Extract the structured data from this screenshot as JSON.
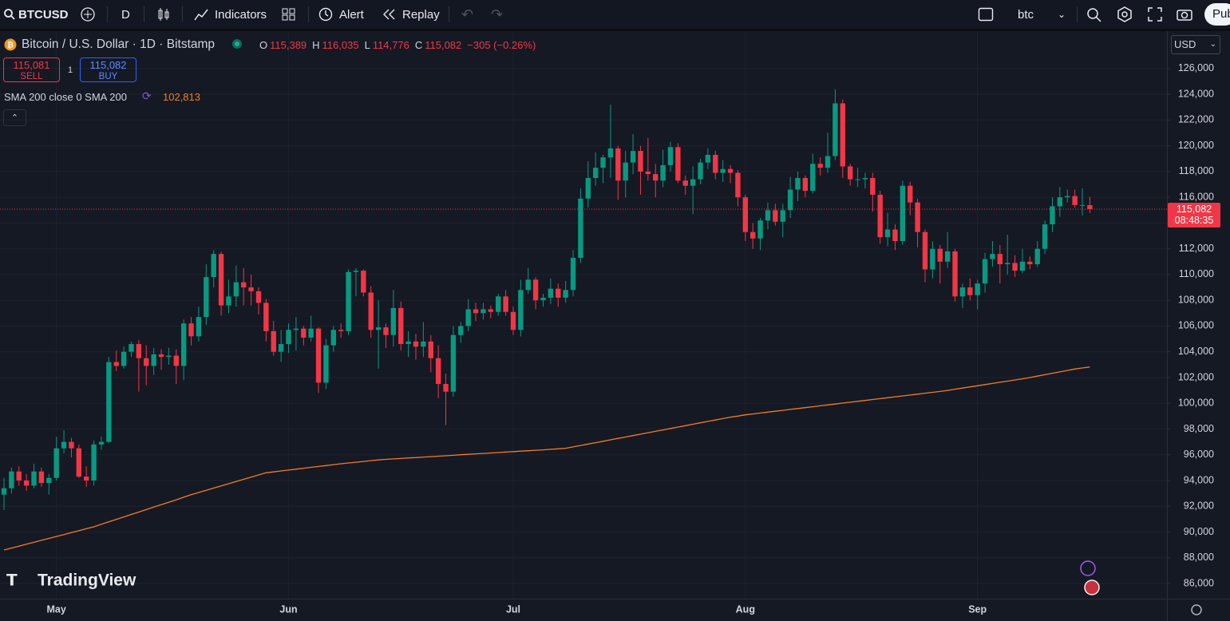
{
  "toolbar": {
    "symbol": "BTCUSD",
    "interval": "D",
    "indicators": "Indicators",
    "alert": "Alert",
    "replay": "Replay",
    "search": "btc",
    "publish": "Pub"
  },
  "legend": {
    "title": "Bitcoin / U.S. Dollar · 1D · Bitstamp",
    "o_label": "O",
    "open": "115,389",
    "h_label": "H",
    "high": "116,035",
    "l_label": "L",
    "low": "114,776",
    "c_label": "C",
    "close": "115,082",
    "change": "−305 (−0.26%)"
  },
  "trade": {
    "sell_price": "115,081",
    "sell": "SELL",
    "qty": "1",
    "buy_price": "115,082",
    "buy": "BUY"
  },
  "indicator": {
    "label": "SMA 200 close 0 SMA 200",
    "value": "102,813"
  },
  "price_axis": {
    "currency": "USD",
    "last_price": "115,082",
    "countdown": "08:48:35"
  },
  "brand": "TradingView",
  "chart_data": {
    "type": "candlestick",
    "up_color": "#089981",
    "down_color": "#f23645",
    "grid": true,
    "ylim": [
      84820,
      128910
    ],
    "yticks": [
      {
        "value": 86000,
        "label": "86,000"
      },
      {
        "value": 88000,
        "label": "88,000"
      },
      {
        "value": 90000,
        "label": "90,000"
      },
      {
        "value": 92000,
        "label": "92,000"
      },
      {
        "value": 94000,
        "label": "94,000"
      },
      {
        "value": 96000,
        "label": "96,000"
      },
      {
        "value": 98000,
        "label": "98,000"
      },
      {
        "value": 100000,
        "label": "100,000"
      },
      {
        "value": 102000,
        "label": "102,000"
      },
      {
        "value": 104000,
        "label": "104,000"
      },
      {
        "value": 106000,
        "label": "106,000"
      },
      {
        "value": 108000,
        "label": "108,000"
      },
      {
        "value": 110000,
        "label": "110,000"
      },
      {
        "value": 112000,
        "label": "112,000"
      },
      {
        "value": 114000,
        "label": "114,000"
      },
      {
        "value": 116000,
        "label": "116,000"
      },
      {
        "value": 118000,
        "label": "118,000"
      },
      {
        "value": 120000,
        "label": "120,000"
      },
      {
        "value": 122000,
        "label": "122,000"
      },
      {
        "value": 124000,
        "label": "124,000"
      },
      {
        "value": 126000,
        "label": "126,000"
      }
    ],
    "categories": [
      null,
      null,
      null,
      null,
      null,
      null,
      null,
      "May",
      null,
      null,
      null,
      null,
      null,
      null,
      null,
      null,
      null,
      null,
      null,
      null,
      null,
      null,
      null,
      null,
      null,
      null,
      null,
      null,
      null,
      null,
      null,
      null,
      null,
      null,
      null,
      null,
      null,
      null,
      "Jun",
      null,
      null,
      null,
      null,
      null,
      null,
      null,
      null,
      null,
      null,
      null,
      null,
      null,
      null,
      null,
      null,
      null,
      null,
      null,
      null,
      null,
      null,
      null,
      null,
      null,
      null,
      null,
      null,
      null,
      "Jul",
      null,
      null,
      null,
      null,
      null,
      null,
      null,
      null,
      null,
      null,
      null,
      null,
      null,
      null,
      null,
      null,
      null,
      null,
      null,
      null,
      null,
      null,
      null,
      null,
      null,
      null,
      null,
      null,
      null,
      null,
      "Aug",
      null,
      null,
      null,
      null,
      null,
      null,
      null,
      null,
      null,
      null,
      null,
      null,
      null,
      null,
      null,
      null,
      null,
      null,
      null,
      null,
      null,
      null,
      null,
      null,
      null,
      null,
      null,
      null,
      null,
      null,
      "Sep",
      null,
      null,
      null,
      null,
      null,
      null,
      null,
      null,
      null,
      null,
      null,
      null,
      null,
      null,
      null
    ],
    "ohlc": [
      [
        92900,
        94200,
        91700,
        93400
      ],
      [
        93400,
        95000,
        93000,
        94700
      ],
      [
        94700,
        95100,
        93600,
        94000
      ],
      [
        94000,
        94500,
        93200,
        93600
      ],
      [
        93600,
        95300,
        93400,
        94700
      ],
      [
        94700,
        95000,
        93500,
        93800
      ],
      [
        93800,
        94500,
        92900,
        94200
      ],
      [
        94200,
        97400,
        94000,
        96500
      ],
      [
        96500,
        97900,
        96100,
        97000
      ],
      [
        97000,
        97300,
        95800,
        96500
      ],
      [
        96500,
        96800,
        94200,
        94300
      ],
      [
        94300,
        95100,
        93500,
        94000
      ],
      [
        94000,
        97100,
        93600,
        96800
      ],
      [
        96800,
        97400,
        96400,
        97000
      ],
      [
        97000,
        103600,
        96900,
        103200
      ],
      [
        103200,
        104100,
        102500,
        102900
      ],
      [
        102900,
        104400,
        102700,
        104000
      ],
      [
        104000,
        104800,
        103600,
        104600
      ],
      [
        104600,
        104900,
        100900,
        103500
      ],
      [
        103500,
        104500,
        101400,
        102900
      ],
      [
        102900,
        104300,
        102200,
        103800
      ],
      [
        103800,
        104200,
        102600,
        103600
      ],
      [
        103600,
        104300,
        103000,
        103700
      ],
      [
        103700,
        104200,
        101500,
        102900
      ],
      [
        102900,
        106500,
        101800,
        106200
      ],
      [
        106200,
        106700,
        104500,
        105200
      ],
      [
        105200,
        107500,
        104800,
        106700
      ],
      [
        106700,
        110800,
        106100,
        109800
      ],
      [
        109800,
        111900,
        109000,
        111600
      ],
      [
        111600,
        111800,
        106800,
        107600
      ],
      [
        107600,
        109600,
        107000,
        108300
      ],
      [
        108300,
        110700,
        107500,
        109400
      ],
      [
        109400,
        110500,
        107600,
        109000
      ],
      [
        109000,
        110000,
        107600,
        108700
      ],
      [
        108700,
        109000,
        106900,
        107800
      ],
      [
        107800,
        108100,
        104800,
        105600
      ],
      [
        105600,
        106400,
        103700,
        104000
      ],
      [
        104000,
        105700,
        103200,
        104600
      ],
      [
        104600,
        106200,
        103900,
        105700
      ],
      [
        105700,
        106700,
        104100,
        105800
      ],
      [
        105800,
        106000,
        104500,
        105100
      ],
      [
        105100,
        106800,
        104800,
        105800
      ],
      [
        105800,
        105900,
        100800,
        101600
      ],
      [
        101600,
        105000,
        101100,
        104500
      ],
      [
        104500,
        106000,
        104000,
        105700
      ],
      [
        105700,
        106200,
        105100,
        105600
      ],
      [
        105600,
        110400,
        105300,
        110200
      ],
      [
        110200,
        110500,
        108300,
        110300
      ],
      [
        110300,
        110400,
        108300,
        108600
      ],
      [
        108600,
        109100,
        105100,
        105700
      ],
      [
        105700,
        108000,
        102700,
        105900
      ],
      [
        105900,
        106200,
        104300,
        105300
      ],
      [
        105300,
        108800,
        104400,
        107400
      ],
      [
        107400,
        107900,
        104100,
        104600
      ],
      [
        104600,
        105600,
        103600,
        104800
      ],
      [
        104800,
        105400,
        103400,
        104400
      ],
      [
        104400,
        106300,
        103600,
        104800
      ],
      [
        104800,
        105300,
        102400,
        103500
      ],
      [
        103500,
        104500,
        100400,
        101500
      ],
      [
        101500,
        102300,
        98300,
        100900
      ],
      [
        100900,
        106000,
        100500,
        105300
      ],
      [
        105300,
        106300,
        104700,
        106000
      ],
      [
        106000,
        108100,
        105600,
        107300
      ],
      [
        107300,
        107800,
        106400,
        107000
      ],
      [
        107000,
        107800,
        106500,
        107300
      ],
      [
        107300,
        107600,
        106600,
        107100
      ],
      [
        107100,
        108500,
        106800,
        108300
      ],
      [
        108300,
        108800,
        106800,
        107100
      ],
      [
        107100,
        107500,
        105300,
        105700
      ],
      [
        105700,
        109600,
        105200,
        108800
      ],
      [
        108800,
        110500,
        108500,
        109600
      ],
      [
        109600,
        109800,
        107300,
        108000
      ],
      [
        108000,
        108500,
        107500,
        108200
      ],
      [
        108200,
        109700,
        107700,
        108900
      ],
      [
        108900,
        109300,
        107500,
        108200
      ],
      [
        108200,
        109500,
        107800,
        108800
      ],
      [
        108800,
        111900,
        108300,
        111300
      ],
      [
        111300,
        116700,
        110900,
        115900
      ],
      [
        115900,
        118800,
        115200,
        117500
      ],
      [
        117500,
        119500,
        116900,
        118300
      ],
      [
        118300,
        119300,
        117100,
        119100
      ],
      [
        119100,
        123200,
        117500,
        119800
      ],
      [
        119800,
        120000,
        115800,
        117300
      ],
      [
        117300,
        119600,
        116000,
        118700
      ],
      [
        118700,
        120900,
        117800,
        119600
      ],
      [
        119600,
        120000,
        116200,
        118000
      ],
      [
        118000,
        120600,
        117300,
        117800
      ],
      [
        117800,
        118600,
        116000,
        117300
      ],
      [
        117300,
        119700,
        116800,
        118500
      ],
      [
        118500,
        120300,
        118000,
        119900
      ],
      [
        119900,
        120200,
        117100,
        117300
      ],
      [
        117300,
        117700,
        116200,
        116900
      ],
      [
        116900,
        118400,
        114700,
        117400
      ],
      [
        117400,
        119000,
        117000,
        118700
      ],
      [
        118700,
        119800,
        118200,
        119300
      ],
      [
        119300,
        119600,
        117400,
        117900
      ],
      [
        117900,
        118900,
        117200,
        118200
      ],
      [
        118200,
        118500,
        117100,
        117900
      ],
      [
        117900,
        118100,
        115300,
        116000
      ],
      [
        116000,
        116200,
        112600,
        113300
      ],
      [
        113300,
        114000,
        112000,
        112800
      ],
      [
        112800,
        114400,
        111900,
        114200
      ],
      [
        114200,
        115600,
        113500,
        115000
      ],
      [
        115000,
        115500,
        113800,
        114100
      ],
      [
        114100,
        115500,
        112900,
        115000
      ],
      [
        115000,
        117600,
        114400,
        116600
      ],
      [
        116600,
        118000,
        115700,
        117500
      ],
      [
        117500,
        117700,
        116000,
        116500
      ],
      [
        116500,
        119400,
        116300,
        118600
      ],
      [
        118600,
        119100,
        117700,
        118300
      ],
      [
        118300,
        121000,
        117900,
        119200
      ],
      [
        119200,
        124400,
        118900,
        123300
      ],
      [
        123300,
        123600,
        117500,
        118400
      ],
      [
        118400,
        118600,
        116900,
        117400
      ],
      [
        117400,
        118300,
        116800,
        117400
      ],
      [
        117400,
        117900,
        116700,
        117500
      ],
      [
        117500,
        117900,
        114900,
        116200
      ],
      [
        116200,
        116500,
        112400,
        112900
      ],
      [
        112900,
        114800,
        112200,
        113500
      ],
      [
        113500,
        113900,
        111900,
        112600
      ],
      [
        112600,
        117300,
        112300,
        116900
      ],
      [
        116900,
        117200,
        114600,
        115600
      ],
      [
        115600,
        115900,
        112100,
        113300
      ],
      [
        113300,
        113500,
        109400,
        110400
      ],
      [
        110400,
        112600,
        109700,
        112000
      ],
      [
        112000,
        112300,
        109300,
        111000
      ],
      [
        111000,
        113300,
        110500,
        111800
      ],
      [
        111800,
        112000,
        107900,
        108300
      ],
      [
        108300,
        109300,
        107400,
        109000
      ],
      [
        109000,
        109700,
        108000,
        108400
      ],
      [
        108400,
        109600,
        107300,
        109300
      ],
      [
        109300,
        111700,
        108600,
        111200
      ],
      [
        111200,
        112600,
        110600,
        111600
      ],
      [
        111600,
        112300,
        109300,
        110800
      ],
      [
        110800,
        113100,
        110000,
        110900
      ],
      [
        110900,
        111500,
        109800,
        110300
      ],
      [
        110300,
        112000,
        110100,
        111000
      ],
      [
        111000,
        111400,
        110400,
        110800
      ],
      [
        110800,
        112600,
        110600,
        112000
      ],
      [
        112000,
        114200,
        111600,
        113900
      ],
      [
        113900,
        116000,
        113300,
        115300
      ],
      [
        115300,
        116800,
        114500,
        116000
      ],
      [
        116000,
        116600,
        115600,
        116100
      ],
      [
        116100,
        116600,
        115200,
        115400
      ],
      [
        115400,
        116700,
        114600,
        115400
      ],
      [
        115389,
        116035,
        114776,
        115082
      ]
    ],
    "sma": {
      "color": "#f57c1f",
      "values": [
        88600,
        88750,
        88900,
        89050,
        89200,
        89350,
        89500,
        89650,
        89800,
        89950,
        90100,
        90250,
        90400,
        90600,
        90790,
        90980,
        91170,
        91360,
        91550,
        91740,
        91930,
        92120,
        92310,
        92500,
        92700,
        92900,
        93070,
        93240,
        93410,
        93580,
        93750,
        93920,
        94090,
        94260,
        94430,
        94600,
        94670,
        94740,
        94810,
        94880,
        94950,
        95020,
        95090,
        95160,
        95230,
        95300,
        95360,
        95420,
        95480,
        95540,
        95600,
        95640,
        95680,
        95710,
        95750,
        95780,
        95820,
        95850,
        95890,
        95920,
        95960,
        96000,
        96030,
        96070,
        96100,
        96140,
        96170,
        96210,
        96240,
        96280,
        96310,
        96350,
        96380,
        96420,
        96460,
        96500,
        96610,
        96720,
        96830,
        96940,
        97050,
        97160,
        97270,
        97380,
        97490,
        97600,
        97710,
        97820,
        97930,
        98040,
        98150,
        98260,
        98370,
        98480,
        98590,
        98700,
        98810,
        98920,
        99000,
        99100,
        99170,
        99240,
        99310,
        99380,
        99450,
        99520,
        99590,
        99660,
        99730,
        99800,
        99870,
        99940,
        100010,
        100080,
        100150,
        100220,
        100290,
        100360,
        100430,
        100500,
        100570,
        100640,
        100710,
        100780,
        100850,
        100920,
        101000,
        101090,
        101180,
        101270,
        101360,
        101450,
        101540,
        101630,
        101720,
        101810,
        101900,
        102000,
        102110,
        102220,
        102330,
        102440,
        102550,
        102660,
        102740,
        102813
      ]
    }
  }
}
